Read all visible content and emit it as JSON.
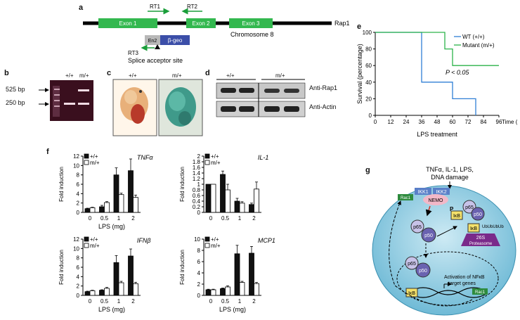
{
  "panel_letters": [
    "a",
    "b",
    "c",
    "d",
    "e",
    "f",
    "g"
  ],
  "panel_a": {
    "rt1": "RT1",
    "rt2": "RT2",
    "rt3": "RT3",
    "exon1": "Exon 1",
    "exon2": "Exon 2",
    "exon3": "Exon 3",
    "gene": "Rap1",
    "chromosome": "Chromosome 8",
    "en2": "En2",
    "bgeo": "β-geo",
    "splice": "Splice acceptor site",
    "colors": {
      "exon": "#33b84f",
      "bgeo": "#3b4ea8",
      "en2": "#b8b8b8",
      "arrow": "#1a9e3a"
    }
  },
  "panel_b": {
    "genotypes": [
      "+/+",
      "m/+"
    ],
    "markers": [
      "525 bp",
      "250 bp"
    ]
  },
  "panel_c": {
    "genotypes": [
      "+/+",
      "m/+"
    ]
  },
  "panel_d": {
    "genotypes": [
      "+/+",
      "m/+"
    ],
    "antibodies": [
      "Anti-Rap1",
      "Anti-Actin"
    ]
  },
  "chart_data": [
    {
      "panel": "e",
      "type": "line",
      "step": true,
      "xlabel": "Time (h)",
      "xlabel2": "LPS treatment",
      "ylabel": "Survival (percentage)",
      "xticks": [
        0,
        12,
        24,
        36,
        48,
        60,
        72,
        84,
        96
      ],
      "yticks": [
        0,
        20,
        40,
        60,
        80,
        100
      ],
      "xlim": [
        0,
        96
      ],
      "ylim": [
        0,
        100
      ],
      "annotation": "P < 0.05",
      "series": [
        {
          "name": "WT (+/+)",
          "color": "#2f7fd6",
          "x": [
            0,
            36,
            36,
            60,
            60,
            78,
            78
          ],
          "y": [
            100,
            100,
            40,
            40,
            20,
            20,
            0
          ]
        },
        {
          "name": "Mutant (m/+)",
          "color": "#2db34a",
          "x": [
            0,
            54,
            54,
            60,
            60,
            96
          ],
          "y": [
            100,
            100,
            80,
            80,
            60,
            60
          ]
        }
      ]
    },
    {
      "panel": "f",
      "type": "bar",
      "title": "TNFα",
      "xlabel": "LPS (mg)",
      "ylabel": "Fold induction",
      "categories": [
        "0",
        "0.5",
        "1",
        "2"
      ],
      "ylim": [
        0,
        12
      ],
      "yticks": [
        0,
        2,
        4,
        6,
        8,
        10,
        12
      ],
      "series": [
        {
          "name": "+/+",
          "values": [
            0.8,
            1.2,
            8.0,
            8.9
          ],
          "errors": [
            0.1,
            0.3,
            1.5,
            2.5
          ]
        },
        {
          "name": "m/+",
          "values": [
            1.0,
            2.1,
            3.8,
            3.2
          ],
          "errors": [
            0.1,
            0.2,
            0.3,
            0.5
          ]
        }
      ]
    },
    {
      "panel": "f",
      "type": "bar",
      "title": "IL-1",
      "xlabel": "",
      "ylabel": "Fold induction",
      "categories": [
        "0",
        "0.5",
        "1",
        "2"
      ],
      "ylim": [
        0,
        2
      ],
      "yticks": [
        0,
        0.2,
        0.4,
        0.6,
        0.8,
        1.0,
        1.2,
        1.4,
        1.6,
        1.8,
        2.0
      ],
      "series": [
        {
          "name": "+/+",
          "values": [
            1.0,
            1.35,
            0.4,
            0.28
          ],
          "errors": [
            0.0,
            0.12,
            0.1,
            0.05
          ]
        },
        {
          "name": "m/+",
          "values": [
            1.0,
            0.8,
            0.33,
            0.83
          ],
          "errors": [
            0.0,
            0.2,
            0.05,
            0.25
          ]
        }
      ]
    },
    {
      "panel": "f",
      "type": "bar",
      "title": "IFNβ",
      "xlabel": "LPS (mg)",
      "ylabel": "Fold induction",
      "categories": [
        "0",
        "0.5",
        "1",
        "2"
      ],
      "ylim": [
        0,
        12
      ],
      "yticks": [
        0,
        2,
        4,
        6,
        8,
        10,
        12
      ],
      "series": [
        {
          "name": "+/+",
          "values": [
            0.8,
            1.1,
            7.0,
            8.4
          ],
          "errors": [
            0.1,
            0.1,
            1.5,
            1.5
          ]
        },
        {
          "name": "m/+",
          "values": [
            1.0,
            1.5,
            2.7,
            2.5
          ],
          "errors": [
            0.1,
            0.2,
            0.3,
            0.3
          ]
        }
      ]
    },
    {
      "panel": "f",
      "type": "bar",
      "title": "MCP1",
      "xlabel": "LPS (mg)",
      "ylabel": "Fold induction",
      "categories": [
        "0",
        "0.5",
        "1",
        "2"
      ],
      "ylim": [
        0,
        10
      ],
      "yticks": [
        0,
        2,
        4,
        6,
        8,
        10
      ],
      "series": [
        {
          "name": "+/+",
          "values": [
            1.0,
            1.2,
            7.4,
            7.5
          ],
          "errors": [
            0.1,
            0.1,
            1.5,
            1.2
          ]
        },
        {
          "name": "m/+",
          "values": [
            1.0,
            1.5,
            2.3,
            2.1
          ],
          "errors": [
            0.1,
            0.2,
            0.2,
            0.2
          ]
        }
      ]
    }
  ],
  "panel_g": {
    "stimuli": "TNFα, IL-1, LPS,",
    "stimuli2": "DNA damage",
    "ikk1": "IKK1",
    "ikk2": "IKK2",
    "nemo": "NEMO",
    "rac1": "Rac1",
    "p": "P",
    "ikb": "IκB",
    "p65": "p65",
    "p50": "p50",
    "ub": "UbUbUbUb",
    "proteasome": "26S",
    "proteasome2": "Proteasome",
    "activation": "Activation of NFκB",
    "targets": "target genes",
    "colors": {
      "cell": "#8fd0e4",
      "nucleus": "#5fb4d0",
      "ikk": "#5a7fc8",
      "rac": "#2e8b3e",
      "ikb": "#f3e06a",
      "prot": "#7a2a8a"
    }
  }
}
